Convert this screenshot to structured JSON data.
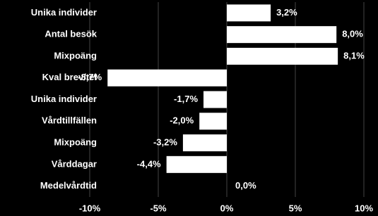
{
  "chart_data": {
    "type": "hbar",
    "categories": [
      "Unika individer",
      "Antal besök",
      "Mixpoäng",
      "Kval brev/tel",
      "Unika individer",
      "Vårdtillfällen",
      "Mixpoäng",
      "Vårddagar",
      "Medelvårdtid"
    ],
    "values": [
      3.2,
      8.0,
      8.1,
      -8.7,
      -1.7,
      -2.0,
      -3.2,
      -4.4,
      0.0
    ],
    "value_labels": [
      "3,2%",
      "8,0%",
      "8,1%",
      "-8,7%",
      "-1,7%",
      "-2,0%",
      "-3,2%",
      "-4,4%",
      "0,0%"
    ],
    "color": "#ffffff",
    "xlim": [
      -10,
      10
    ],
    "xticks": [
      {
        "value": -10,
        "label": "-10%"
      },
      {
        "value": -5,
        "label": "-5%"
      },
      {
        "value": 0,
        "label": "0%"
      },
      {
        "value": 5,
        "label": "5%"
      },
      {
        "value": 10,
        "label": "10%"
      }
    ],
    "grid": true
  }
}
